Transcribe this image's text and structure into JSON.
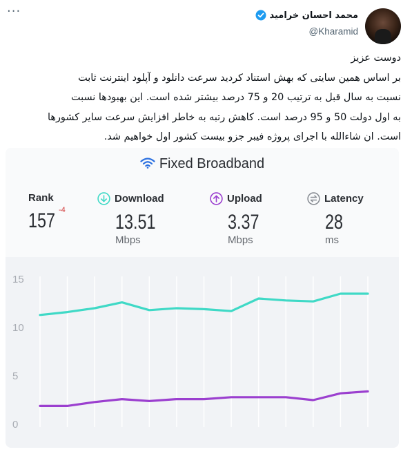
{
  "tweet": {
    "more_label": "···",
    "author": {
      "display_name": "محمد احسان خرامید",
      "handle": "@Kharamid",
      "verified": true
    },
    "text": "دوست عزیز\nبر اساس همین سایتی که بهش استناد کردید سرعت دانلود و آپلود اینترنت ثابت\nنسبت به سال قبل به ترتیب 20 و 75 درصد بیشتر شده است. این بهبودها نسبت\nبه اول دولت 50 و 95 درصد است. کاهش رتبه به خاطر افزایش سرعت سایر کشورها\nاست. ان شاءالله با اجرای پروژه فیبر جزو بیست کشور اول خواهیم شد."
  },
  "card": {
    "title": "Fixed Broadband",
    "metrics": {
      "rank": {
        "label": "Rank",
        "value": "157",
        "delta": "-4"
      },
      "download": {
        "label": "Download",
        "value": "13.51",
        "unit": "Mbps"
      },
      "upload": {
        "label": "Upload",
        "value": "3.37",
        "unit": "Mbps"
      },
      "latency": {
        "label": "Latency",
        "value": "28",
        "unit": "ms"
      }
    },
    "colors": {
      "download": "#3fd9c6",
      "upload": "#9b3fcf",
      "latency": "#8a8e95",
      "rank_delta": "#d23a3a"
    }
  },
  "chart_data": {
    "type": "line",
    "yticks": [
      "15",
      "10",
      "5",
      "0"
    ],
    "ylim": [
      0,
      15
    ],
    "x": [
      1,
      2,
      3,
      4,
      5,
      6,
      7,
      8,
      9,
      10,
      11,
      12,
      13
    ],
    "series": [
      {
        "name": "Download",
        "values": [
          11.3,
          11.6,
          12.0,
          12.6,
          11.8,
          12.0,
          11.9,
          11.7,
          13.0,
          12.8,
          12.7,
          13.5,
          13.5
        ]
      },
      {
        "name": "Upload",
        "values": [
          1.9,
          1.9,
          2.3,
          2.6,
          2.4,
          2.6,
          2.6,
          2.8,
          2.8,
          2.8,
          2.5,
          3.2,
          3.4
        ]
      }
    ],
    "grid": "vertical"
  }
}
